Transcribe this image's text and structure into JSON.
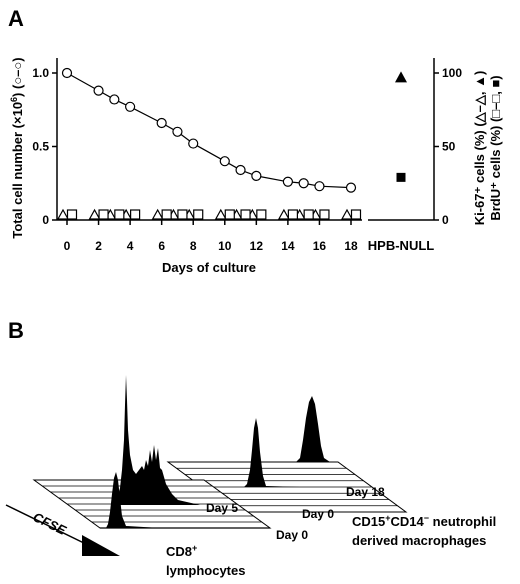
{
  "chart_data": [
    {
      "panel_label": "A",
      "type": "line",
      "xlabel": "Days of culture",
      "ylabel_left_main": "Total cell number (×10",
      "ylabel_left_exp": "6",
      "ylabel_left_tail": ") (○–○)",
      "ylabel_right_1": "Ki-67⁺ cells (%) (△–△, ▲)",
      "ylabel_right_2": "BrdU⁺ cells (%) (□–□, ■)",
      "x_ticks": [
        "0",
        "2",
        "4",
        "6",
        "8",
        "10",
        "12",
        "14",
        "16",
        "18"
      ],
      "x_range": [
        0,
        18
      ],
      "y_left_range": [
        0,
        1.0
      ],
      "y_left_ticks": [
        "0",
        "0.5",
        "1.0"
      ],
      "y_right_range": [
        0,
        100
      ],
      "y_right_ticks": [
        "0",
        "50",
        "100"
      ],
      "series": [
        {
          "marker": "open-circle",
          "axis": "left",
          "x": [
            0,
            2,
            3,
            4,
            6,
            7,
            8,
            10,
            11,
            12,
            14,
            15,
            16,
            18
          ],
          "y": [
            1.0,
            0.88,
            0.82,
            0.77,
            0.66,
            0.6,
            0.52,
            0.4,
            0.34,
            0.3,
            0.26,
            0.25,
            0.23,
            0.22
          ]
        },
        {
          "marker": "open-triangle",
          "axis": "right",
          "x": [
            0,
            2,
            3,
            4,
            6,
            7,
            8,
            10,
            11,
            12,
            14,
            15,
            16,
            18
          ],
          "y": [
            0,
            0,
            0,
            0,
            0,
            0,
            0,
            0,
            0,
            0,
            0,
            0,
            0,
            0
          ]
        },
        {
          "marker": "open-square",
          "axis": "right",
          "x": [
            0,
            2,
            3,
            4,
            6,
            7,
            8,
            10,
            11,
            12,
            14,
            15,
            16,
            18
          ],
          "y": [
            0,
            0,
            0,
            0,
            0,
            0,
            0,
            0,
            0,
            0,
            0,
            0,
            0,
            0
          ]
        }
      ],
      "control": {
        "label": "HPB-NULL",
        "points": [
          {
            "marker": "filled-triangle",
            "axis": "right",
            "y": 97
          },
          {
            "marker": "filled-square",
            "axis": "right",
            "y": 29
          }
        ]
      }
    },
    {
      "panel_label": "B",
      "type": "histogram",
      "axis_label": "CFSE",
      "groups": [
        {
          "name_line1": "CD8",
          "name_line1_sup": "+",
          "name_line2": "lymphocytes",
          "day_labels": [
            "Day 0",
            "Day 5"
          ]
        },
        {
          "name_line1": "CD15",
          "name_line1_sup": "+",
          "name_line1_mid": "CD14",
          "name_line1_sup2": "−",
          "name_line1_tail": " neutrophil",
          "name_line2": "derived macrophages",
          "day_labels": [
            "Day 0",
            "Day 18"
          ]
        }
      ]
    }
  ]
}
